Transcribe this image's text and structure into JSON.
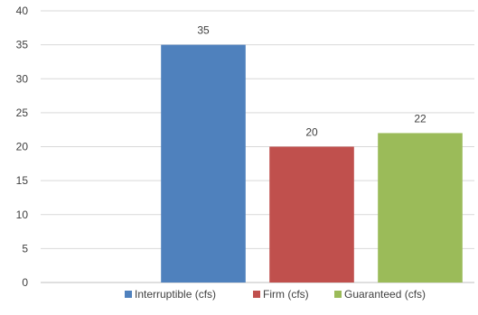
{
  "chart_data": {
    "type": "bar",
    "title": "",
    "xlabel": "",
    "ylabel": "",
    "ylim": [
      0,
      40
    ],
    "yticks": [
      0,
      5,
      10,
      15,
      20,
      25,
      30,
      35,
      40
    ],
    "grid": true,
    "legend_position": "bottom",
    "categories": [
      "",
      "Interruptible (cfs)",
      "Firm (cfs)",
      "Guaranteed (cfs)"
    ],
    "series": [
      {
        "name": "Interruptible (cfs)",
        "category_index": 1,
        "value": 35,
        "color": "#4F81BD"
      },
      {
        "name": "Firm (cfs)",
        "category_index": 2,
        "value": 20,
        "color": "#C0504D"
      },
      {
        "name": "Guaranteed (cfs)",
        "category_index": 3,
        "value": 22,
        "color": "#9BBB59"
      }
    ],
    "data_labels": true,
    "colors": {
      "grid": "#D9D9D9",
      "axis": "#BFBFBF",
      "text": "#404040"
    }
  }
}
